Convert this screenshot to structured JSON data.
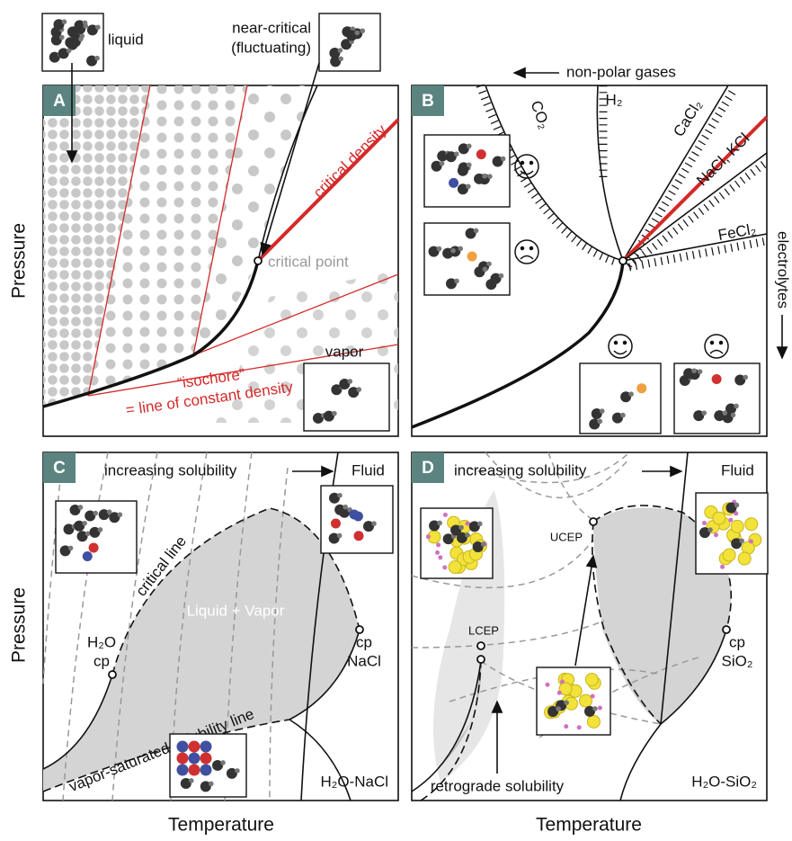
{
  "axes": {
    "y_label_top": "Pressure",
    "y_label_bottom": "Pressure",
    "x_label_left": "Temperature",
    "x_label_right": "Temperature"
  },
  "panel_a": {
    "letter": "A",
    "liquid": "liquid",
    "near_critical": [
      "near-critical",
      "(fluctuating)"
    ],
    "critical_density": "critical density",
    "critical_point": "critical point",
    "vapor": "vapor",
    "isochore": [
      "“isochore”",
      "= line of constant density"
    ]
  },
  "panel_b": {
    "letter": "B",
    "non_polar_gases": "non-polar gases",
    "electrolytes": "electrolytes",
    "curves": [
      "CO₂",
      "H₂",
      "CaCl₂",
      "NaCl, KCl",
      "FeCl₂"
    ]
  },
  "panel_c": {
    "letter": "C",
    "increasing_solubility": "increasing solubility",
    "fluid": "Fluid",
    "critical_line": "critical line",
    "liquid_vapor": "Liquid + Vapor",
    "h2o": "H₂O",
    "cp_h2o": "cp",
    "cp_nacl": "cp",
    "nacl": "NaCl",
    "solubility_line": "vapor-saturated solubility line",
    "system": "H₂O-NaCl"
  },
  "panel_d": {
    "letter": "D",
    "increasing_solubility": "increasing solubility",
    "fluid": "Fluid",
    "ucep": "UCEP",
    "lcep": "LCEP",
    "cp": "cp",
    "sio2": "SiO₂",
    "retrograde": "retrograde solubility",
    "system": "H₂O-SiO₂"
  }
}
